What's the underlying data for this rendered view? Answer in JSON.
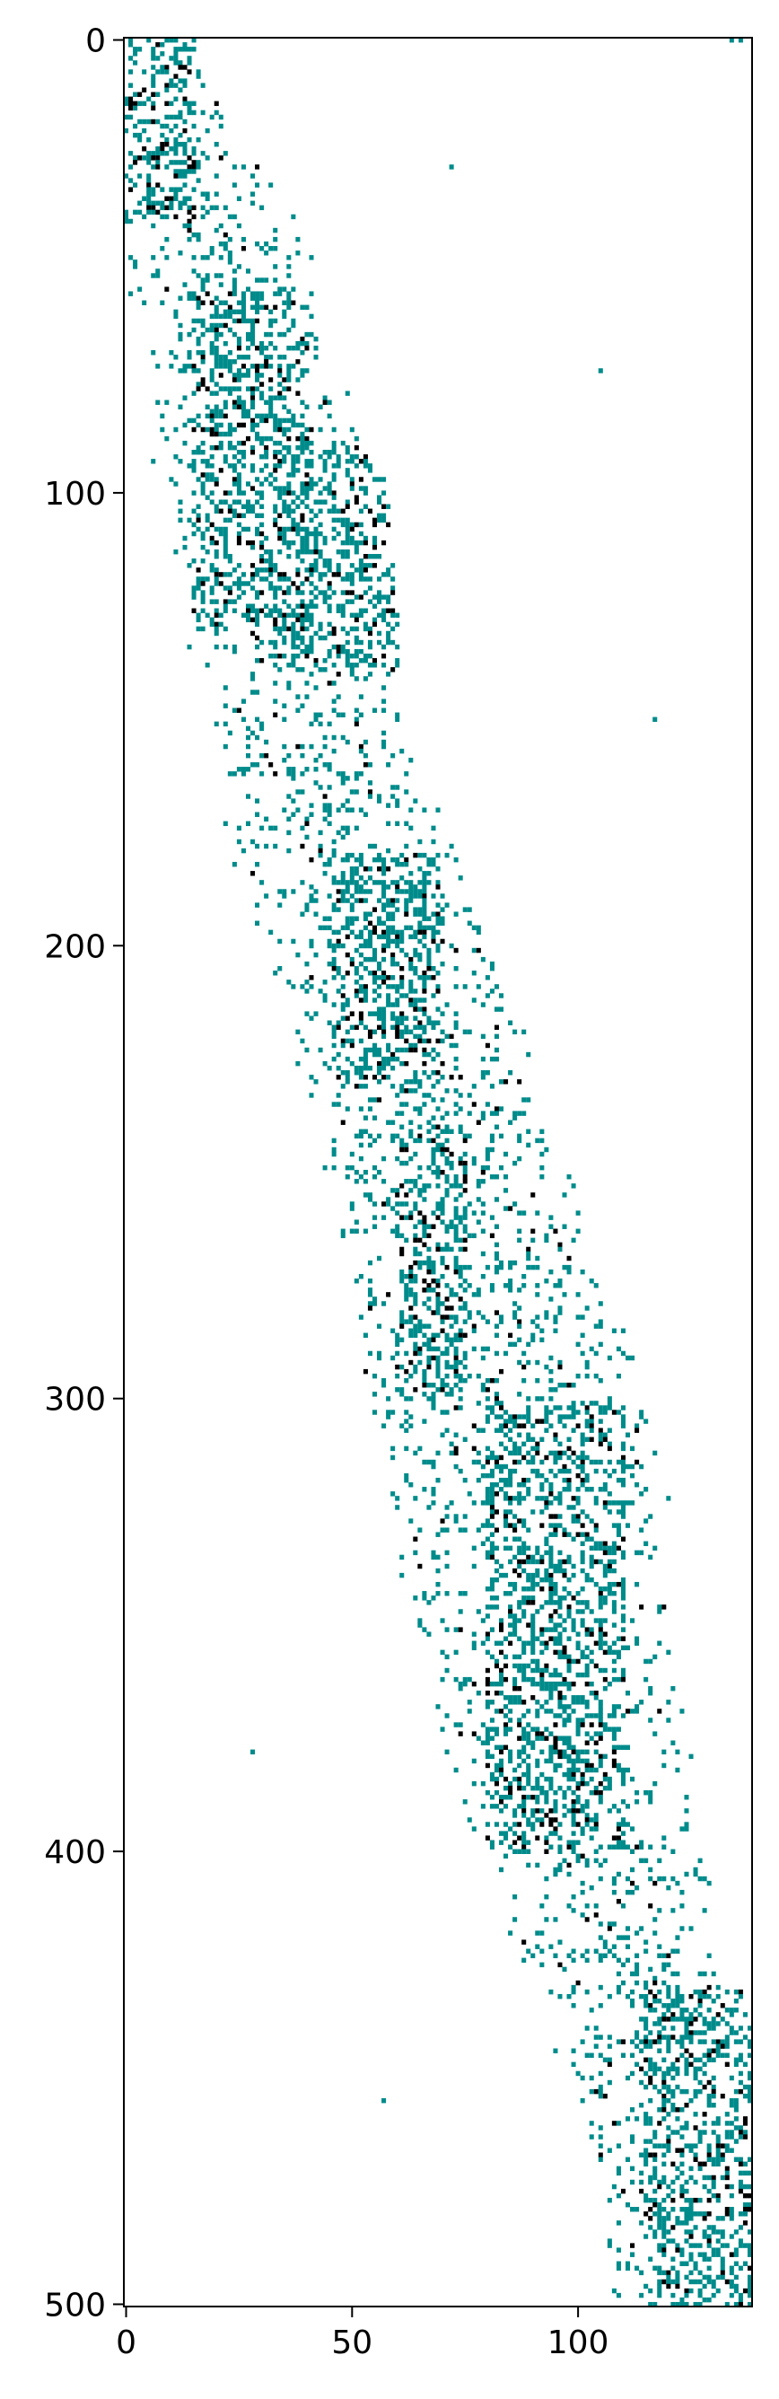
{
  "chart_data": {
    "type": "heatmap",
    "title": "",
    "xlabel": "",
    "ylabel": "",
    "xlim": [
      -0.5,
      138.5
    ],
    "ylim": [
      500.5,
      -0.5
    ],
    "x_ticks": [
      0,
      50,
      100
    ],
    "y_ticks": [
      0,
      100,
      200,
      300,
      400,
      500
    ],
    "x_tick_labels": [
      "0",
      "50",
      "100"
    ],
    "y_tick_labels": [
      "0",
      "100",
      "200",
      "300",
      "400",
      "500"
    ],
    "grid": false,
    "legend": "none",
    "colors": {
      "background": "#ffffff",
      "value_1": "#008b8b",
      "value_2": "#000000"
    },
    "description_of_values": "Sparse matrix, 501 rows × 139 columns. Cells are empty (white), value 1 (teal) or value 2 (black). Nonzero cells follow a diagonal band from the top-left to the bottom-right.",
    "rows": 501,
    "cols": 139,
    "band_profile": [
      {
        "y": 0,
        "x_start": 0,
        "x_end": 14
      },
      {
        "y": 50,
        "x_start": 2,
        "x_end": 40
      },
      {
        "y": 100,
        "x_start": 10,
        "x_end": 55
      },
      {
        "y": 150,
        "x_start": 20,
        "x_end": 60
      },
      {
        "y": 200,
        "x_start": 30,
        "x_end": 80
      },
      {
        "y": 250,
        "x_start": 45,
        "x_end": 95
      },
      {
        "y": 300,
        "x_start": 55,
        "x_end": 115
      },
      {
        "y": 350,
        "x_start": 65,
        "x_end": 120
      },
      {
        "y": 400,
        "x_start": 80,
        "x_end": 125
      },
      {
        "y": 450,
        "x_start": 100,
        "x_end": 138
      },
      {
        "y": 500,
        "x_start": 110,
        "x_end": 138
      }
    ],
    "dense_blocks": [
      {
        "x_range": [
          0,
          15
        ],
        "y_range": [
          0,
          40
        ]
      },
      {
        "x_range": [
          15,
          40
        ],
        "y_range": [
          55,
          130
        ]
      },
      {
        "x_range": [
          35,
          60
        ],
        "y_range": [
          90,
          140
        ]
      },
      {
        "x_range": [
          45,
          70
        ],
        "y_range": [
          180,
          230
        ]
      },
      {
        "x_range": [
          60,
          75
        ],
        "y_range": [
          240,
          300
        ]
      },
      {
        "x_range": [
          80,
          110
        ],
        "y_range": [
          300,
          400
        ]
      },
      {
        "x_range": [
          115,
          138
        ],
        "y_range": [
          430,
          500
        ]
      }
    ]
  }
}
